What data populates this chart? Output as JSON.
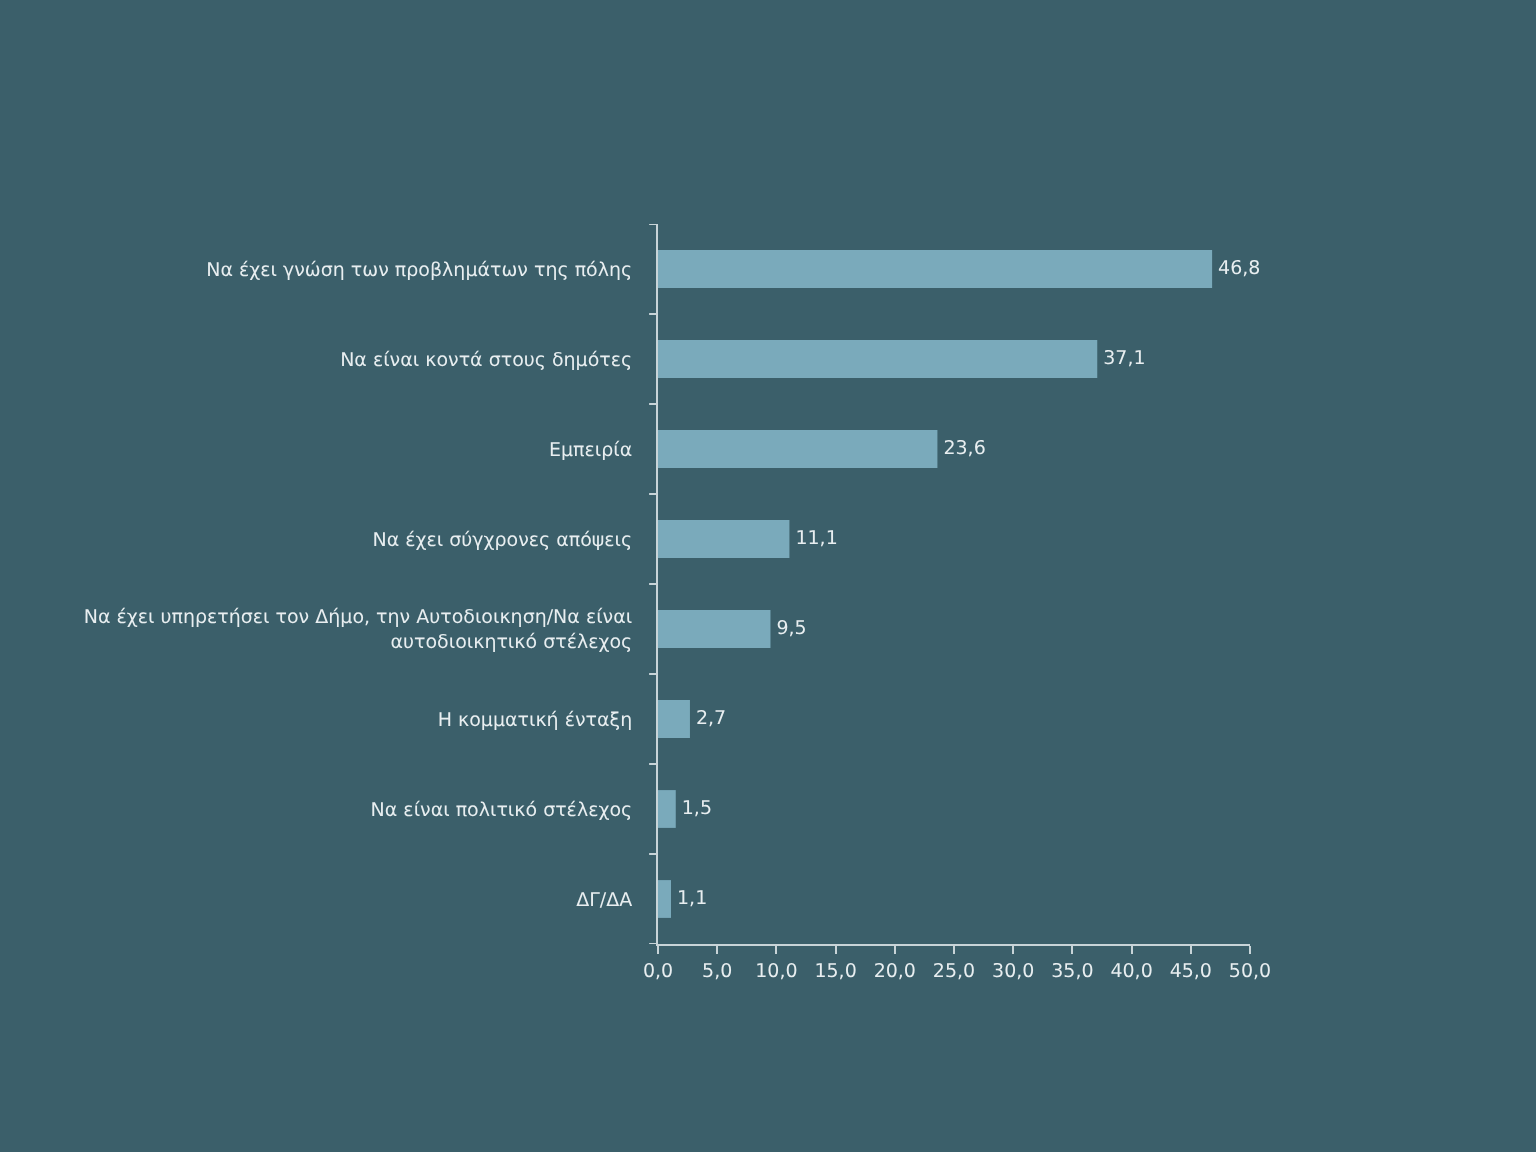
{
  "chart_data": {
    "type": "bar",
    "orientation": "horizontal",
    "categories": [
      "Να έχει γνώση των προβλημάτων της πόλης",
      "Να είναι κοντά στους δημότες",
      "Εμπειρία",
      "Να έχει σύγχρονες απόψεις",
      "Να έχει υπηρετήσει τον Δήμο, την Αυτοδιοικηση/Να είναι αυτοδιοικητικό στέλεχος",
      "Η κομματική ένταξη",
      "Να είναι πολιτικό στέλεχος",
      "ΔΓ/ΔΑ"
    ],
    "values": [
      46.8,
      37.1,
      23.6,
      11.1,
      9.5,
      2.7,
      1.5,
      1.1
    ],
    "value_labels": [
      "46,8",
      "37,1",
      "23,6",
      "11,1",
      "9,5",
      "2,7",
      "1,5",
      "1,1"
    ],
    "color": "#7aaabb",
    "xlim": [
      0,
      50
    ],
    "xticks": [
      {
        "value": 0,
        "label": "0,0"
      },
      {
        "value": 5,
        "label": "5,0"
      },
      {
        "value": 10,
        "label": "10,0"
      },
      {
        "value": 15,
        "label": "15,0"
      },
      {
        "value": 20,
        "label": "20,0"
      },
      {
        "value": 25,
        "label": "25,0"
      },
      {
        "value": 30,
        "label": "30,0"
      },
      {
        "value": 35,
        "label": "35,0"
      },
      {
        "value": 40,
        "label": "40,0"
      },
      {
        "value": 45,
        "label": "45,0"
      },
      {
        "value": 50,
        "label": "50,0"
      }
    ]
  }
}
